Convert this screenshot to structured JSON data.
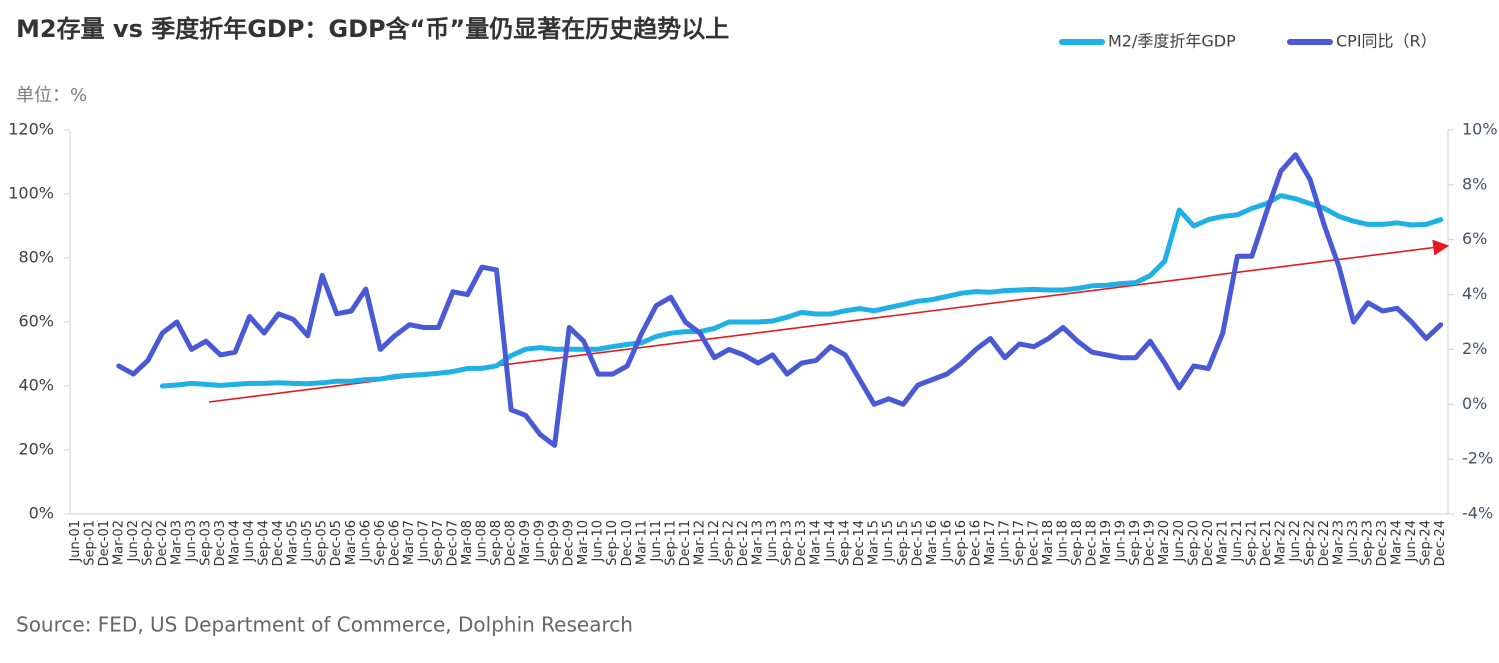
{
  "chart_data": {
    "type": "line",
    "title": "M2存量 vs 季度折年GDP：GDP含“币”量仍显著在历史趋势以上",
    "unit_label": "单位：%",
    "source": "Source: FED, US Department of Commerce, Dolphin Research",
    "categories": [
      "Jun-01",
      "Sep-01",
      "Dec-01",
      "Mar-02",
      "Jun-02",
      "Sep-02",
      "Dec-02",
      "Mar-03",
      "Jun-03",
      "Sep-03",
      "Dec-03",
      "Mar-04",
      "Jun-04",
      "Sep-04",
      "Dec-04",
      "Mar-05",
      "Jun-05",
      "Sep-05",
      "Dec-05",
      "Mar-06",
      "Jun-06",
      "Sep-06",
      "Dec-06",
      "Mar-07",
      "Jun-07",
      "Sep-07",
      "Dec-07",
      "Mar-08",
      "Jun-08",
      "Sep-08",
      "Dec-08",
      "Mar-09",
      "Jun-09",
      "Sep-09",
      "Dec-09",
      "Mar-10",
      "Jun-10",
      "Sep-10",
      "Dec-10",
      "Mar-11",
      "Jun-11",
      "Sep-11",
      "Dec-11",
      "Mar-12",
      "Jun-12",
      "Sep-12",
      "Dec-12",
      "Mar-13",
      "Jun-13",
      "Sep-13",
      "Dec-13",
      "Mar-14",
      "Jun-14",
      "Sep-14",
      "Dec-14",
      "Mar-15",
      "Jun-15",
      "Sep-15",
      "Dec-15",
      "Mar-16",
      "Jun-16",
      "Sep-16",
      "Dec-16",
      "Mar-17",
      "Jun-17",
      "Sep-17",
      "Dec-17",
      "Mar-18",
      "Jun-18",
      "Sep-18",
      "Dec-18",
      "Mar-19",
      "Jun-19",
      "Sep-19",
      "Dec-19",
      "Mar-20",
      "Jun-20",
      "Sep-20",
      "Dec-20",
      "Mar-21",
      "Jun-21",
      "Sep-21",
      "Dec-21",
      "Mar-22",
      "Jun-22",
      "Sep-22",
      "Dec-22",
      "Mar-23",
      "Jun-23",
      "Sep-23",
      "Dec-23",
      "Mar-24",
      "Jun-24",
      "Sep-24",
      "Dec-24"
    ],
    "series": [
      {
        "name": "M2/季度折年GDP",
        "color": "#1fb0e6",
        "values": [
          null,
          null,
          null,
          null,
          null,
          null,
          40.0,
          40.3,
          40.8,
          40.5,
          40.2,
          40.5,
          40.8,
          40.8,
          41.0,
          40.8,
          40.7,
          41.0,
          41.5,
          41.5,
          42.0,
          42.2,
          43.0,
          43.3,
          43.6,
          44.0,
          44.5,
          45.5,
          45.5,
          46.3,
          49.5,
          51.5,
          52.0,
          51.5,
          51.5,
          51.5,
          51.5,
          52.3,
          53.0,
          53.5,
          55.5,
          56.5,
          57.0,
          57.0,
          58.0,
          60.0,
          60.0,
          60.0,
          60.3,
          61.5,
          63.0,
          62.5,
          62.5,
          63.5,
          64.2,
          63.5,
          64.5,
          65.5,
          66.5,
          67.0,
          68.0,
          69.0,
          69.5,
          69.3,
          69.8,
          70.0,
          70.2,
          70.0,
          70.0,
          70.5,
          71.3,
          71.5,
          72.0,
          72.3,
          74.5,
          79.0,
          95.0,
          90.0,
          92.0,
          93.0,
          93.5,
          95.5,
          97.0,
          99.5,
          98.5,
          97.0,
          95.5,
          93.0,
          91.5,
          90.5,
          90.5,
          91.0,
          90.3,
          90.5,
          92.0
        ]
      },
      {
        "name": "CPI同比（R）",
        "color": "#4a5ad6",
        "axis": "y2",
        "values": [
          null,
          null,
          null,
          1.4,
          1.1,
          1.6,
          2.6,
          3.0,
          2.0,
          2.3,
          1.8,
          1.9,
          3.2,
          2.6,
          3.3,
          3.1,
          2.5,
          4.7,
          3.3,
          3.4,
          4.2,
          2.0,
          2.5,
          2.9,
          2.8,
          2.8,
          4.1,
          4.0,
          5.0,
          4.9,
          -0.2,
          -0.4,
          -1.1,
          -1.5,
          2.8,
          2.3,
          1.1,
          1.1,
          1.4,
          2.6,
          3.6,
          3.9,
          3.0,
          2.6,
          1.7,
          2.0,
          1.8,
          1.5,
          1.8,
          1.1,
          1.5,
          1.6,
          2.1,
          1.8,
          0.9,
          0.0,
          0.2,
          0.0,
          0.7,
          0.9,
          1.1,
          1.5,
          2.0,
          2.4,
          1.7,
          2.2,
          2.1,
          2.4,
          2.8,
          2.3,
          1.9,
          1.8,
          1.7,
          1.7,
          2.3,
          1.5,
          0.6,
          1.4,
          1.3,
          2.6,
          5.4,
          5.4,
          7.0,
          8.5,
          9.1,
          8.2,
          6.5,
          5.0,
          3.0,
          3.7,
          3.4,
          3.5,
          3.0,
          2.4,
          2.9
        ]
      }
    ],
    "ylim": [
      0,
      120
    ],
    "yticks": [
      {
        "value": 0,
        "label": "0%"
      },
      {
        "value": 20,
        "label": "20%"
      },
      {
        "value": 40,
        "label": "40%"
      },
      {
        "value": 60,
        "label": "60%"
      },
      {
        "value": 80,
        "label": "80%"
      },
      {
        "value": 100,
        "label": "100%"
      },
      {
        "value": 120,
        "label": "120%"
      }
    ],
    "y2lim": [
      -4,
      10
    ],
    "y2ticks": [
      {
        "value": -4,
        "label": "-4%"
      },
      {
        "value": -2,
        "label": "-2%"
      },
      {
        "value": 0,
        "label": "0%"
      },
      {
        "value": 2,
        "label": "2%"
      },
      {
        "value": 4,
        "label": "4%"
      },
      {
        "value": 6,
        "label": "6%"
      },
      {
        "value": 8,
        "label": "8%"
      },
      {
        "value": 10,
        "label": "10%"
      }
    ]
  }
}
